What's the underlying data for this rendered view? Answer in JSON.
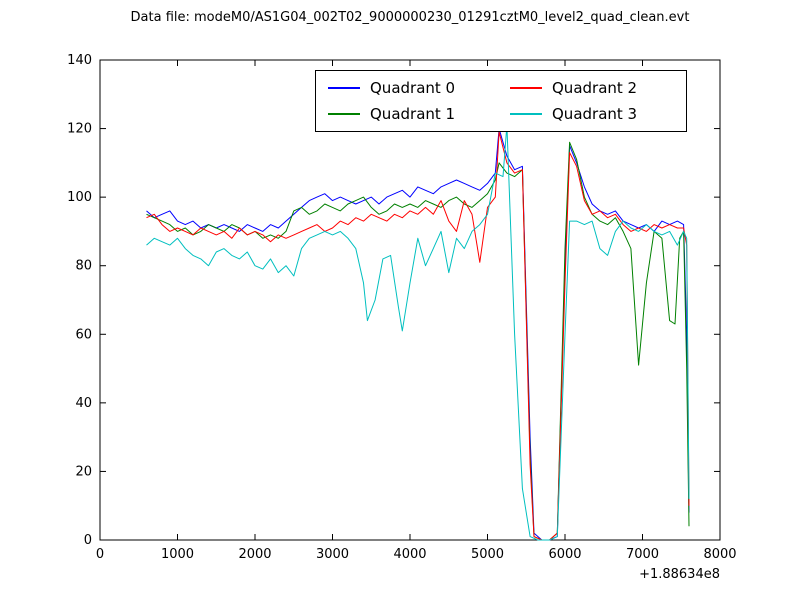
{
  "figure": {
    "background": "#ffffff",
    "axes_color": "#000000"
  },
  "chart_data": {
    "type": "line",
    "title": "Data file: modeM0/AS1G04_002T02_9000000230_01291cztM0_level2_quad_clean.evt",
    "xlabel": "",
    "ylabel": "",
    "xlim": [
      0,
      8000
    ],
    "ylim": [
      0,
      140
    ],
    "xticks": [
      0,
      1000,
      2000,
      3000,
      4000,
      5000,
      6000,
      7000,
      8000
    ],
    "yticks": [
      0,
      20,
      40,
      60,
      80,
      100,
      120,
      140
    ],
    "x_offset_label": "+1.88634e8",
    "grid": false,
    "legend_position": "upper center",
    "legend_order": [
      0,
      2,
      1,
      3
    ],
    "series": [
      {
        "name": "Quadrant 0",
        "color": "#0000ff",
        "points": [
          [
            600,
            96
          ],
          [
            700,
            94
          ],
          [
            800,
            95
          ],
          [
            900,
            96
          ],
          [
            1000,
            93
          ],
          [
            1100,
            92
          ],
          [
            1200,
            93
          ],
          [
            1300,
            91
          ],
          [
            1400,
            92
          ],
          [
            1500,
            91
          ],
          [
            1600,
            92
          ],
          [
            1700,
            91
          ],
          [
            1800,
            90
          ],
          [
            1900,
            92
          ],
          [
            2000,
            91
          ],
          [
            2100,
            90
          ],
          [
            2200,
            92
          ],
          [
            2300,
            91
          ],
          [
            2400,
            93
          ],
          [
            2500,
            95
          ],
          [
            2600,
            97
          ],
          [
            2700,
            99
          ],
          [
            2800,
            100
          ],
          [
            2900,
            101
          ],
          [
            3000,
            99
          ],
          [
            3100,
            100
          ],
          [
            3200,
            99
          ],
          [
            3300,
            98
          ],
          [
            3400,
            99
          ],
          [
            3500,
            100
          ],
          [
            3600,
            98
          ],
          [
            3700,
            100
          ],
          [
            3800,
            101
          ],
          [
            3900,
            102
          ],
          [
            4000,
            100
          ],
          [
            4100,
            103
          ],
          [
            4200,
            102
          ],
          [
            4300,
            101
          ],
          [
            4400,
            103
          ],
          [
            4500,
            104
          ],
          [
            4600,
            105
          ],
          [
            4700,
            104
          ],
          [
            4800,
            103
          ],
          [
            4900,
            102
          ],
          [
            5000,
            104
          ],
          [
            5100,
            107
          ],
          [
            5150,
            120
          ],
          [
            5250,
            112
          ],
          [
            5350,
            108
          ],
          [
            5450,
            109
          ],
          [
            5550,
            30
          ],
          [
            5600,
            2
          ],
          [
            5700,
            0
          ],
          [
            5800,
            0
          ],
          [
            5900,
            1
          ],
          [
            6000,
            80
          ],
          [
            6060,
            115
          ],
          [
            6150,
            110
          ],
          [
            6250,
            103
          ],
          [
            6350,
            98
          ],
          [
            6450,
            96
          ],
          [
            6550,
            95
          ],
          [
            6650,
            96
          ],
          [
            6750,
            93
          ],
          [
            6850,
            92
          ],
          [
            6950,
            91
          ],
          [
            7050,
            92
          ],
          [
            7150,
            90
          ],
          [
            7250,
            93
          ],
          [
            7350,
            92
          ],
          [
            7450,
            93
          ],
          [
            7530,
            92
          ],
          [
            7570,
            60
          ],
          [
            7600,
            8
          ]
        ]
      },
      {
        "name": "Quadrant 1",
        "color": "#008000",
        "points": [
          [
            600,
            95
          ],
          [
            700,
            94
          ],
          [
            800,
            93
          ],
          [
            900,
            92
          ],
          [
            1000,
            90
          ],
          [
            1100,
            91
          ],
          [
            1200,
            89
          ],
          [
            1300,
            90
          ],
          [
            1400,
            92
          ],
          [
            1500,
            91
          ],
          [
            1600,
            90
          ],
          [
            1700,
            92
          ],
          [
            1800,
            91
          ],
          [
            1900,
            89
          ],
          [
            2000,
            90
          ],
          [
            2100,
            88
          ],
          [
            2200,
            89
          ],
          [
            2300,
            88
          ],
          [
            2400,
            90
          ],
          [
            2500,
            96
          ],
          [
            2600,
            97
          ],
          [
            2700,
            95
          ],
          [
            2800,
            96
          ],
          [
            2900,
            98
          ],
          [
            3000,
            97
          ],
          [
            3100,
            96
          ],
          [
            3200,
            98
          ],
          [
            3300,
            99
          ],
          [
            3400,
            100
          ],
          [
            3500,
            97
          ],
          [
            3600,
            95
          ],
          [
            3700,
            96
          ],
          [
            3800,
            98
          ],
          [
            3900,
            97
          ],
          [
            4000,
            98
          ],
          [
            4100,
            97
          ],
          [
            4200,
            99
          ],
          [
            4300,
            98
          ],
          [
            4400,
            97
          ],
          [
            4500,
            99
          ],
          [
            4600,
            100
          ],
          [
            4700,
            98
          ],
          [
            4800,
            97
          ],
          [
            4900,
            99
          ],
          [
            5000,
            101
          ],
          [
            5100,
            105
          ],
          [
            5150,
            110
          ],
          [
            5250,
            107
          ],
          [
            5350,
            106
          ],
          [
            5450,
            108
          ],
          [
            5550,
            25
          ],
          [
            5600,
            1
          ],
          [
            5700,
            0
          ],
          [
            5800,
            0
          ],
          [
            5900,
            2
          ],
          [
            6000,
            85
          ],
          [
            6060,
            116
          ],
          [
            6150,
            111
          ],
          [
            6250,
            100
          ],
          [
            6350,
            95
          ],
          [
            6450,
            93
          ],
          [
            6550,
            92
          ],
          [
            6650,
            94
          ],
          [
            6750,
            90
          ],
          [
            6850,
            85
          ],
          [
            6950,
            51
          ],
          [
            7050,
            75
          ],
          [
            7150,
            90
          ],
          [
            7250,
            88
          ],
          [
            7350,
            64
          ],
          [
            7420,
            63
          ],
          [
            7480,
            88
          ],
          [
            7530,
            90
          ],
          [
            7570,
            50
          ],
          [
            7600,
            4
          ]
        ]
      },
      {
        "name": "Quadrant 2",
        "color": "#ff0000",
        "points": [
          [
            600,
            94
          ],
          [
            700,
            95
          ],
          [
            800,
            92
          ],
          [
            900,
            90
          ],
          [
            1000,
            91
          ],
          [
            1100,
            90
          ],
          [
            1200,
            89
          ],
          [
            1300,
            91
          ],
          [
            1400,
            90
          ],
          [
            1500,
            89
          ],
          [
            1600,
            90
          ],
          [
            1700,
            88
          ],
          [
            1800,
            91
          ],
          [
            1900,
            89
          ],
          [
            2000,
            90
          ],
          [
            2100,
            89
          ],
          [
            2200,
            87
          ],
          [
            2300,
            89
          ],
          [
            2400,
            88
          ],
          [
            2500,
            89
          ],
          [
            2600,
            90
          ],
          [
            2700,
            91
          ],
          [
            2800,
            92
          ],
          [
            2900,
            90
          ],
          [
            3000,
            91
          ],
          [
            3100,
            93
          ],
          [
            3200,
            92
          ],
          [
            3300,
            94
          ],
          [
            3400,
            93
          ],
          [
            3500,
            95
          ],
          [
            3600,
            94
          ],
          [
            3700,
            93
          ],
          [
            3800,
            95
          ],
          [
            3900,
            94
          ],
          [
            4000,
            96
          ],
          [
            4100,
            95
          ],
          [
            4200,
            97
          ],
          [
            4300,
            95
          ],
          [
            4400,
            99
          ],
          [
            4500,
            93
          ],
          [
            4600,
            90
          ],
          [
            4700,
            99
          ],
          [
            4800,
            95
          ],
          [
            4900,
            81
          ],
          [
            5000,
            97
          ],
          [
            5100,
            100
          ],
          [
            5150,
            119
          ],
          [
            5250,
            110
          ],
          [
            5350,
            107
          ],
          [
            5450,
            108
          ],
          [
            5550,
            22
          ],
          [
            5600,
            1
          ],
          [
            5700,
            0
          ],
          [
            5800,
            0
          ],
          [
            5900,
            2
          ],
          [
            6000,
            75
          ],
          [
            6060,
            113
          ],
          [
            6150,
            109
          ],
          [
            6250,
            99
          ],
          [
            6350,
            95
          ],
          [
            6450,
            96
          ],
          [
            6550,
            94
          ],
          [
            6650,
            95
          ],
          [
            6750,
            92
          ],
          [
            6850,
            90
          ],
          [
            6950,
            91
          ],
          [
            7050,
            90
          ],
          [
            7150,
            92
          ],
          [
            7250,
            91
          ],
          [
            7350,
            92
          ],
          [
            7450,
            91
          ],
          [
            7530,
            91
          ],
          [
            7570,
            86
          ],
          [
            7600,
            10
          ]
        ]
      },
      {
        "name": "Quadrant 3",
        "color": "#00bfbf",
        "points": [
          [
            600,
            86
          ],
          [
            700,
            88
          ],
          [
            800,
            87
          ],
          [
            900,
            86
          ],
          [
            1000,
            88
          ],
          [
            1100,
            85
          ],
          [
            1200,
            83
          ],
          [
            1300,
            82
          ],
          [
            1400,
            80
          ],
          [
            1500,
            84
          ],
          [
            1600,
            85
          ],
          [
            1700,
            83
          ],
          [
            1800,
            82
          ],
          [
            1900,
            84
          ],
          [
            2000,
            80
          ],
          [
            2100,
            79
          ],
          [
            2200,
            82
          ],
          [
            2300,
            78
          ],
          [
            2400,
            80
          ],
          [
            2500,
            77
          ],
          [
            2600,
            85
          ],
          [
            2700,
            88
          ],
          [
            2800,
            89
          ],
          [
            2900,
            90
          ],
          [
            3000,
            89
          ],
          [
            3100,
            90
          ],
          [
            3200,
            88
          ],
          [
            3300,
            85
          ],
          [
            3400,
            75
          ],
          [
            3450,
            64
          ],
          [
            3550,
            70
          ],
          [
            3650,
            82
          ],
          [
            3750,
            83
          ],
          [
            3850,
            68
          ],
          [
            3900,
            61
          ],
          [
            4000,
            75
          ],
          [
            4100,
            88
          ],
          [
            4200,
            80
          ],
          [
            4300,
            85
          ],
          [
            4400,
            90
          ],
          [
            4500,
            78
          ],
          [
            4600,
            88
          ],
          [
            4700,
            85
          ],
          [
            4800,
            90
          ],
          [
            4900,
            92
          ],
          [
            5000,
            95
          ],
          [
            5100,
            107
          ],
          [
            5200,
            106
          ],
          [
            5250,
            121
          ],
          [
            5350,
            60
          ],
          [
            5450,
            15
          ],
          [
            5550,
            1
          ],
          [
            5650,
            0
          ],
          [
            5800,
            0
          ],
          [
            5900,
            1
          ],
          [
            6000,
            60
          ],
          [
            6060,
            93
          ],
          [
            6150,
            93
          ],
          [
            6250,
            92
          ],
          [
            6350,
            93
          ],
          [
            6450,
            85
          ],
          [
            6550,
            83
          ],
          [
            6650,
            90
          ],
          [
            6750,
            93
          ],
          [
            6850,
            91
          ],
          [
            6950,
            90
          ],
          [
            7050,
            92
          ],
          [
            7150,
            90
          ],
          [
            7250,
            89
          ],
          [
            7350,
            90
          ],
          [
            7450,
            86
          ],
          [
            7530,
            90
          ],
          [
            7570,
            88
          ],
          [
            7600,
            12
          ]
        ]
      }
    ]
  }
}
